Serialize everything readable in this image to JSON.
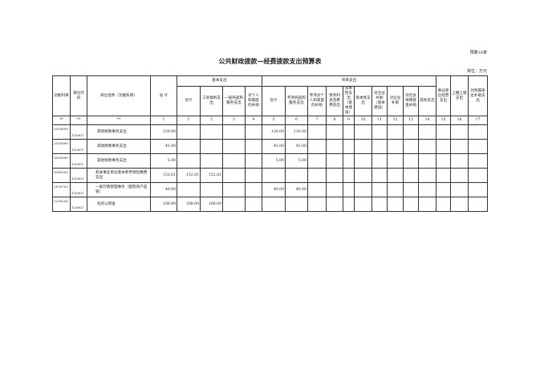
{
  "table_no": "预算16表",
  "title": "公共财政拨款—经费拨款支出预算表",
  "unit": "单位：万元",
  "headers": {
    "func_code": "功能科目",
    "unit_code": "单位代码",
    "unit_name": "单位名称（功能科目）",
    "total": "总 计",
    "basic": "基本支出",
    "project": "项目支出",
    "basic_cols": [
      "合计",
      "工资福利支出",
      "一般商品和服务支出",
      "对个人和家庭的补助"
    ],
    "project_cols": [
      "合计",
      "专项商品和服务支出",
      "专项对个人和家庭的补助",
      "债务利息及费用支出",
      "资本性支出（基本建设）",
      "资本性支出",
      "对企业补助（基本建设）",
      "对企业补助",
      "对社会保障基金补助",
      "其他支出"
    ],
    "other_cols": [
      "事业单位经营支出",
      "上缴上级支出",
      "对附属单位补助支出"
    ]
  },
  "number_row": [
    "**",
    "**",
    "**",
    "1",
    "1",
    "2",
    "3",
    "4",
    "5",
    "6",
    "7",
    "8",
    "9",
    "10",
    "11",
    "12",
    "13",
    "14",
    "15",
    "16",
    "17"
  ],
  "rows": [
    {
      "func": "2010699",
      "unit": "120001",
      "name": "其他财政事务支出",
      "total": "120.00",
      "b": [
        "",
        "",
        "",
        ""
      ],
      "p": [
        "120.00",
        "120.00",
        "",
        "",
        "",
        "",
        "",
        "",
        "",
        ""
      ],
      "o": [
        "",
        "",
        ""
      ]
    },
    {
      "func": "2010699",
      "unit": "120001",
      "name": "其他财政事务支出",
      "total": "45.00",
      "b": [
        "",
        "",
        "",
        ""
      ],
      "p": [
        "45.00",
        "45.00",
        "",
        "",
        "",
        "",
        "",
        "",
        "",
        ""
      ],
      "o": [
        "",
        "",
        ""
      ]
    },
    {
      "func": "2010699",
      "unit": "120001",
      "name": "其他财政事务支出",
      "total": "5.00",
      "b": [
        "",
        "",
        "",
        ""
      ],
      "p": [
        "5.00",
        "5.00",
        "",
        "",
        "",
        "",
        "",
        "",
        "",
        ""
      ],
      "o": [
        "",
        "",
        ""
      ]
    },
    {
      "func": "2080505",
      "unit": "120001",
      "name": "机关事业单位基本养老保险缴费支出",
      "total": "152.81",
      "b": [
        "152.81",
        "152.81",
        "",
        ""
      ],
      "p": [
        "",
        "",
        "",
        "",
        "",
        "",
        "",
        "",
        "",
        ""
      ],
      "o": [
        "",
        "",
        ""
      ]
    },
    {
      "func": "2150702",
      "unit": "120001",
      "name": "一般行政管理事务（国有资产监管）",
      "total": "40.00",
      "b": [
        "",
        "",
        "",
        ""
      ],
      "p": [
        "40.00",
        "40.00",
        "",
        "",
        "",
        "",
        "",
        "",
        "",
        ""
      ],
      "o": [
        "",
        "",
        ""
      ]
    },
    {
      "func": "2210201",
      "unit": "120001",
      "name": "住房公积金",
      "total": "108.69",
      "b": [
        "108.69",
        "108.69",
        "",
        ""
      ],
      "p": [
        "",
        "",
        "",
        "",
        "",
        "",
        "",
        "",
        "",
        ""
      ],
      "o": [
        "",
        "",
        ""
      ]
    }
  ]
}
